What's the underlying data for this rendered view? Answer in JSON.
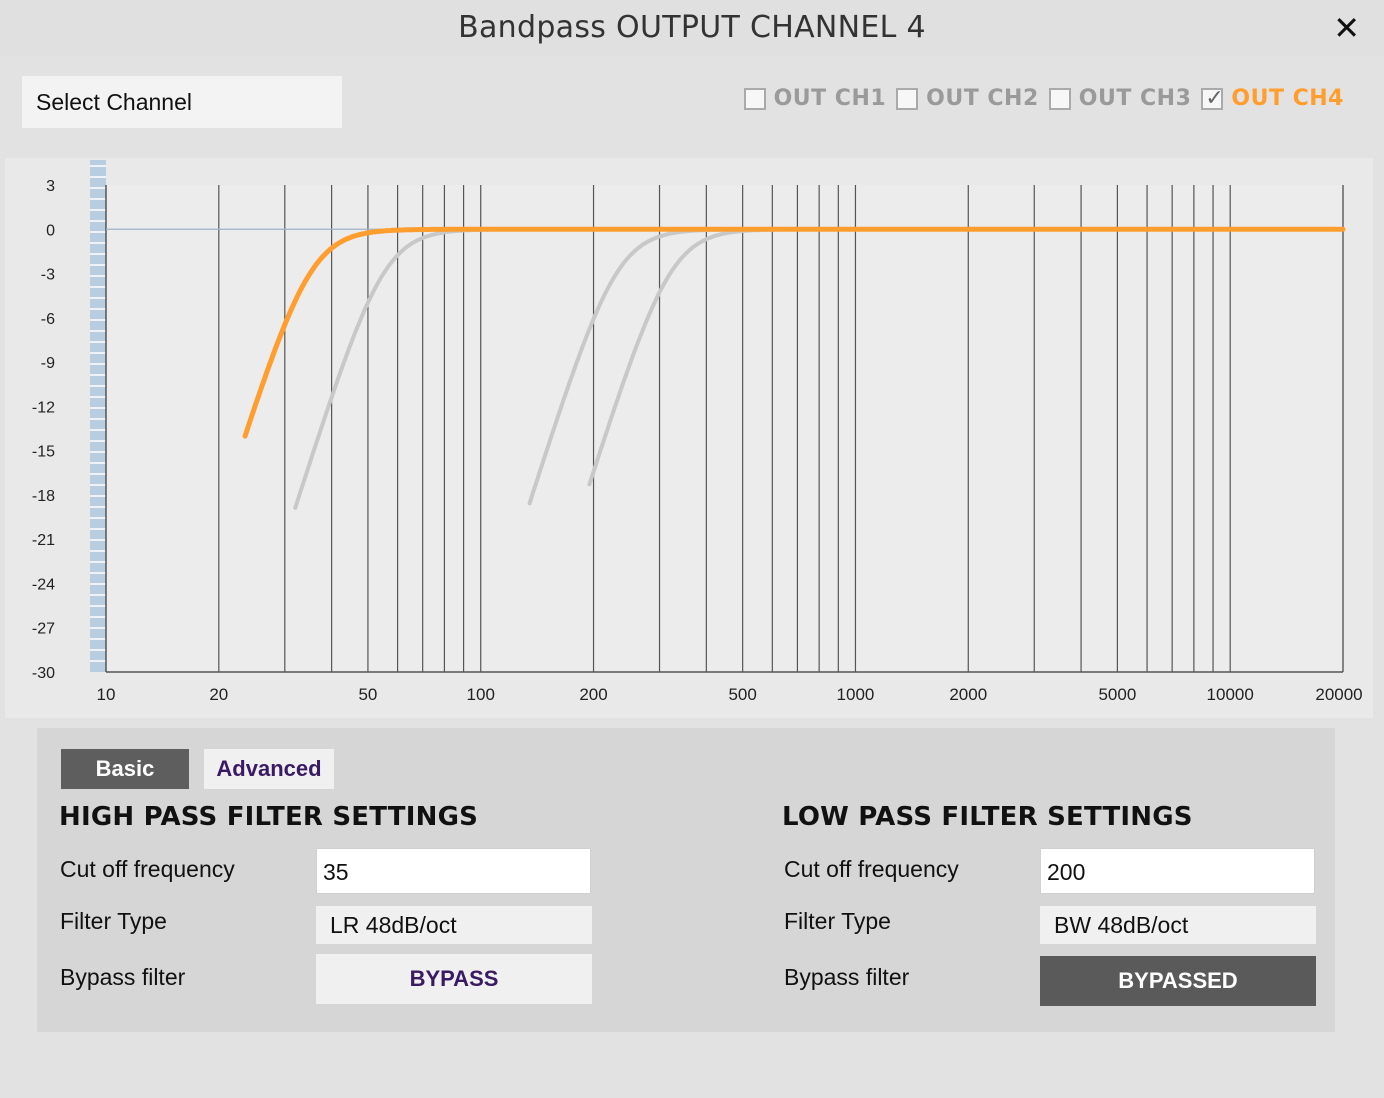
{
  "window": {
    "title": "Bandpass OUTPUT CHANNEL 4",
    "close_label": "✕"
  },
  "channel_select": {
    "label": "Select Channel"
  },
  "channels": [
    {
      "label": "OUT CH1",
      "checked": false
    },
    {
      "label": "OUT CH2",
      "checked": false
    },
    {
      "label": "OUT CH3",
      "checked": false
    },
    {
      "label": "OUT CH4",
      "checked": true
    }
  ],
  "colors": {
    "accent": "#ff9d2e",
    "inactive_curve": "#c8c8c8",
    "dark_button": "#5a5a5a",
    "purple_text": "#3b1a64"
  },
  "chart_data": {
    "type": "line",
    "x_scale": "log",
    "xlim": [
      10,
      20000
    ],
    "ylim": [
      -30,
      3
    ],
    "x_ticks": [
      "10",
      "20",
      "50",
      "100",
      "200",
      "500",
      "1000",
      "2000",
      "5000",
      "10000",
      "20000"
    ],
    "y_ticks": [
      "3",
      "0",
      "-3",
      "-6",
      "-9",
      "-12",
      "-15",
      "-18",
      "-21",
      "-24",
      "-27",
      "-30"
    ],
    "grid": true,
    "series": [
      {
        "channel": "OUT CH4",
        "active": true,
        "cutoff_hz": 35,
        "order": 8,
        "color": "#ff9d2e",
        "x_start": 23.5
      },
      {
        "channel": "OUT CH1",
        "active": false,
        "cutoff_hz": 55,
        "order": 8,
        "color": "#c8c8c8",
        "x_start": 32
      },
      {
        "channel": "OUT CH2",
        "active": false,
        "cutoff_hz": 230,
        "order": 8,
        "color": "#c8c8c8",
        "x_start": 135
      },
      {
        "channel": "OUT CH3",
        "active": false,
        "cutoff_hz": 320,
        "order": 8,
        "color": "#c8c8c8",
        "x_start": 195
      }
    ]
  },
  "tabs": {
    "basic": "Basic",
    "advanced": "Advanced"
  },
  "high_pass": {
    "title": "HIGH PASS FILTER SETTINGS",
    "cutoff_label": "Cut off frequency",
    "cutoff_value": "35",
    "type_label": "Filter Type",
    "type_value": "LR 48dB/oct",
    "bypass_label": "Bypass filter",
    "bypass_button": "BYPASS"
  },
  "low_pass": {
    "title": "LOW PASS FILTER SETTINGS",
    "cutoff_label": "Cut off frequency",
    "cutoff_value": "200",
    "type_label": "Filter Type",
    "type_value": "BW 48dB/oct",
    "bypass_label": "Bypass filter",
    "bypass_button": "BYPASSED"
  }
}
